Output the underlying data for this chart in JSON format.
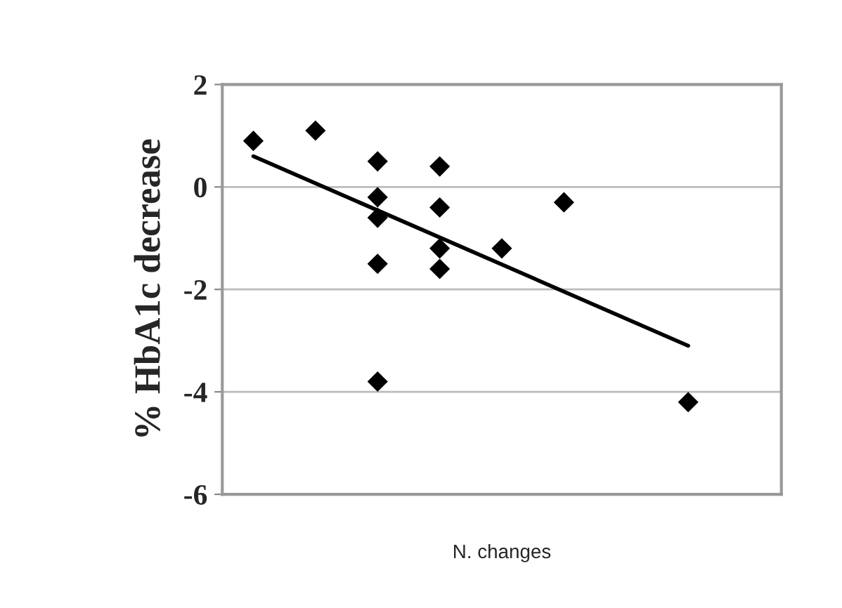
{
  "chart_data": {
    "type": "scatter",
    "xlabel": "N. changes",
    "ylabel": "% HbA1c decrease",
    "categories": [
      null,
      null,
      null,
      null,
      null,
      null,
      null,
      null,
      null
    ],
    "ylim": [
      -6,
      2
    ],
    "yticks": [
      -6,
      -4,
      -2,
      0,
      2
    ],
    "grid": "y",
    "marker": "diamond",
    "series": [
      {
        "color": "#000000",
        "values": [
          0.9,
          1.1,
          0.5,
          0.4,
          -1.2,
          -0.3,
          null,
          -4.2,
          null
        ]
      },
      {
        "color": "#000000",
        "values": [
          null,
          null,
          -0.2,
          -0.4,
          null,
          null,
          null,
          null,
          null
        ]
      },
      {
        "color": "#000000",
        "values": [
          null,
          null,
          -0.6,
          -1.2,
          null,
          null,
          null,
          null,
          null
        ]
      },
      {
        "color": "#000000",
        "values": [
          null,
          null,
          -1.5,
          -1.6,
          null,
          null,
          null,
          null,
          null
        ]
      },
      {
        "color": "#000000",
        "values": [
          null,
          null,
          -3.8,
          null,
          null,
          null,
          null,
          null,
          null
        ]
      },
      {
        "type": "line",
        "marker": "none",
        "color": "#000000",
        "values": [
          0.6,
          null,
          null,
          null,
          null,
          null,
          null,
          -3.1,
          null
        ]
      }
    ]
  }
}
